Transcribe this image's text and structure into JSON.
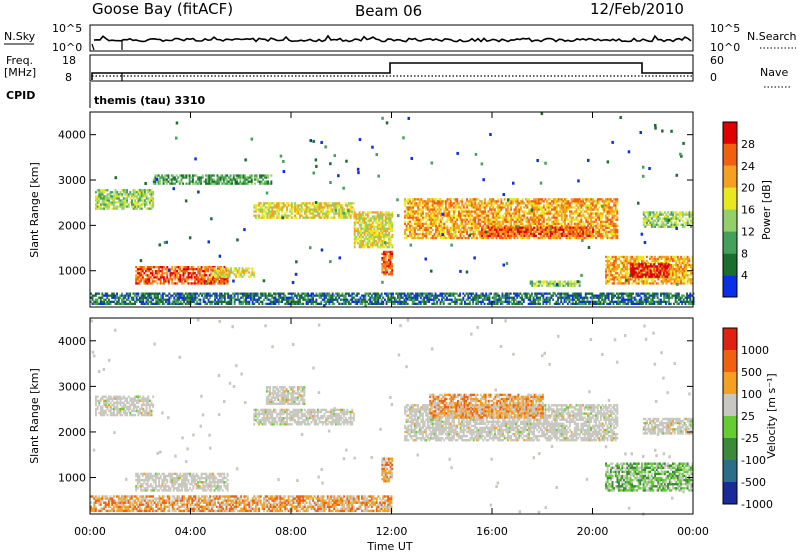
{
  "header": {
    "station": "Goose Bay (fitACF)",
    "beam": "Beam 06",
    "date": "12/Feb/2010"
  },
  "strip": {
    "nsky_label": "N.Sky",
    "nsky_ticks": [
      "10^5",
      "10^0"
    ],
    "nsearch_label": "N.Search",
    "nsearch_ticks": [
      "10^5",
      "10^0"
    ],
    "freq_label_1": "Freq.",
    "freq_label_2": "[MHz]",
    "freq_ticks": [
      "18",
      "8"
    ],
    "nave_label": "Nave",
    "nave_ticks": [
      "60",
      "0"
    ],
    "cpid_label": "CPID",
    "cpid_value": "themis (tau) 3310"
  },
  "chart_data": [
    {
      "type": "heatmap",
      "name": "power",
      "ylabel": "Slant Range [km]",
      "ylim": [
        200,
        4500
      ],
      "yticks": [
        1000,
        2000,
        3000,
        4000
      ],
      "xticks": [
        "00:00",
        "04:00",
        "08:00",
        "12:00",
        "16:00",
        "20:00",
        "00:00"
      ],
      "xlim": [
        0,
        24
      ],
      "colorbar_label": "Power [dB]",
      "colorbar_ticks": [
        "4",
        "8",
        "12",
        "16",
        "20",
        "24",
        "28"
      ],
      "colorbar_colors": [
        "#0b2fe6",
        "#1a6e2e",
        "#44a05a",
        "#93d06a",
        "#e8e820",
        "#f5a020",
        "#f06010",
        "#e00000"
      ],
      "echo_bands": [
        {
          "t0": 0.2,
          "t1": 2.5,
          "r0": 2350,
          "r1": 2800,
          "level": 3
        },
        {
          "t0": 2.5,
          "t1": 7.2,
          "r0": 2900,
          "r1": 3100,
          "level": 2
        },
        {
          "t0": 6.5,
          "t1": 10.5,
          "r0": 2150,
          "r1": 2500,
          "level": 4
        },
        {
          "t0": 10.5,
          "t1": 12.0,
          "r0": 1500,
          "r1": 2300,
          "level": 4
        },
        {
          "t0": 11.6,
          "t1": 12.0,
          "r0": 900,
          "r1": 1400,
          "level": 6
        },
        {
          "t0": 12.5,
          "t1": 21.0,
          "r0": 1700,
          "r1": 2600,
          "level": 5
        },
        {
          "t0": 15.5,
          "t1": 20.0,
          "r0": 1750,
          "r1": 1950,
          "level": 6
        },
        {
          "t0": 1.8,
          "t1": 5.5,
          "r0": 700,
          "r1": 1100,
          "level": 6
        },
        {
          "t0": 4.8,
          "t1": 6.5,
          "r0": 850,
          "r1": 1050,
          "level": 4
        },
        {
          "t0": 17.5,
          "t1": 19.5,
          "r0": 650,
          "r1": 750,
          "level": 3
        },
        {
          "t0": 20.5,
          "t1": 24.0,
          "r0": 700,
          "r1": 1300,
          "level": 5
        },
        {
          "t0": 21.5,
          "t1": 23.0,
          "r0": 850,
          "r1": 1150,
          "level": 7
        },
        {
          "t0": 22.0,
          "t1": 24.0,
          "r0": 1950,
          "r1": 2300,
          "level": 3
        },
        {
          "t0": 0.0,
          "t1": 24.0,
          "r0": 250,
          "r1": 500,
          "level": 1
        }
      ]
    },
    {
      "type": "heatmap",
      "name": "velocity",
      "ylabel": "Slant Range [km]",
      "ylim": [
        200,
        4500
      ],
      "yticks": [
        1000,
        2000,
        3000,
        4000
      ],
      "xticks": [
        "00:00",
        "04:00",
        "08:00",
        "12:00",
        "16:00",
        "20:00",
        "00:00"
      ],
      "xlim": [
        0,
        24
      ],
      "xlabel": "Time UT",
      "colorbar_label": "Velocity [m s⁻¹]",
      "colorbar_ticks": [
        "1000",
        "500",
        "100",
        "25",
        "-25",
        "-100",
        "-500",
        "-1000"
      ],
      "colorbar_colors": [
        "#1a2a9a",
        "#2a6e8a",
        "#3a8a3a",
        "#66cc33",
        "#c8c8c0",
        "#f5a020",
        "#f06010",
        "#e02010"
      ],
      "echo_bands": [
        {
          "t0": 0.2,
          "t1": 2.5,
          "r0": 2350,
          "r1": 2800,
          "level": 4
        },
        {
          "t0": 6.5,
          "t1": 10.5,
          "r0": 2150,
          "r1": 2500,
          "level": 4
        },
        {
          "t0": 7.0,
          "t1": 8.5,
          "r0": 2600,
          "r1": 3000,
          "level": 4
        },
        {
          "t0": 12.5,
          "t1": 21.0,
          "r0": 1800,
          "r1": 2600,
          "level": 4
        },
        {
          "t0": 13.5,
          "t1": 18.0,
          "r0": 2300,
          "r1": 2800,
          "level": 5
        },
        {
          "t0": 1.8,
          "t1": 5.5,
          "r0": 700,
          "r1": 1100,
          "level": 4
        },
        {
          "t0": 11.6,
          "t1": 12.0,
          "r0": 900,
          "r1": 1400,
          "level": 5
        },
        {
          "t0": 20.5,
          "t1": 24.0,
          "r0": 700,
          "r1": 1300,
          "level": 3
        },
        {
          "t0": 22.0,
          "t1": 24.0,
          "r0": 1950,
          "r1": 2300,
          "level": 4
        },
        {
          "t0": 0.0,
          "t1": 12.0,
          "r0": 250,
          "r1": 600,
          "level": 5
        }
      ]
    }
  ]
}
